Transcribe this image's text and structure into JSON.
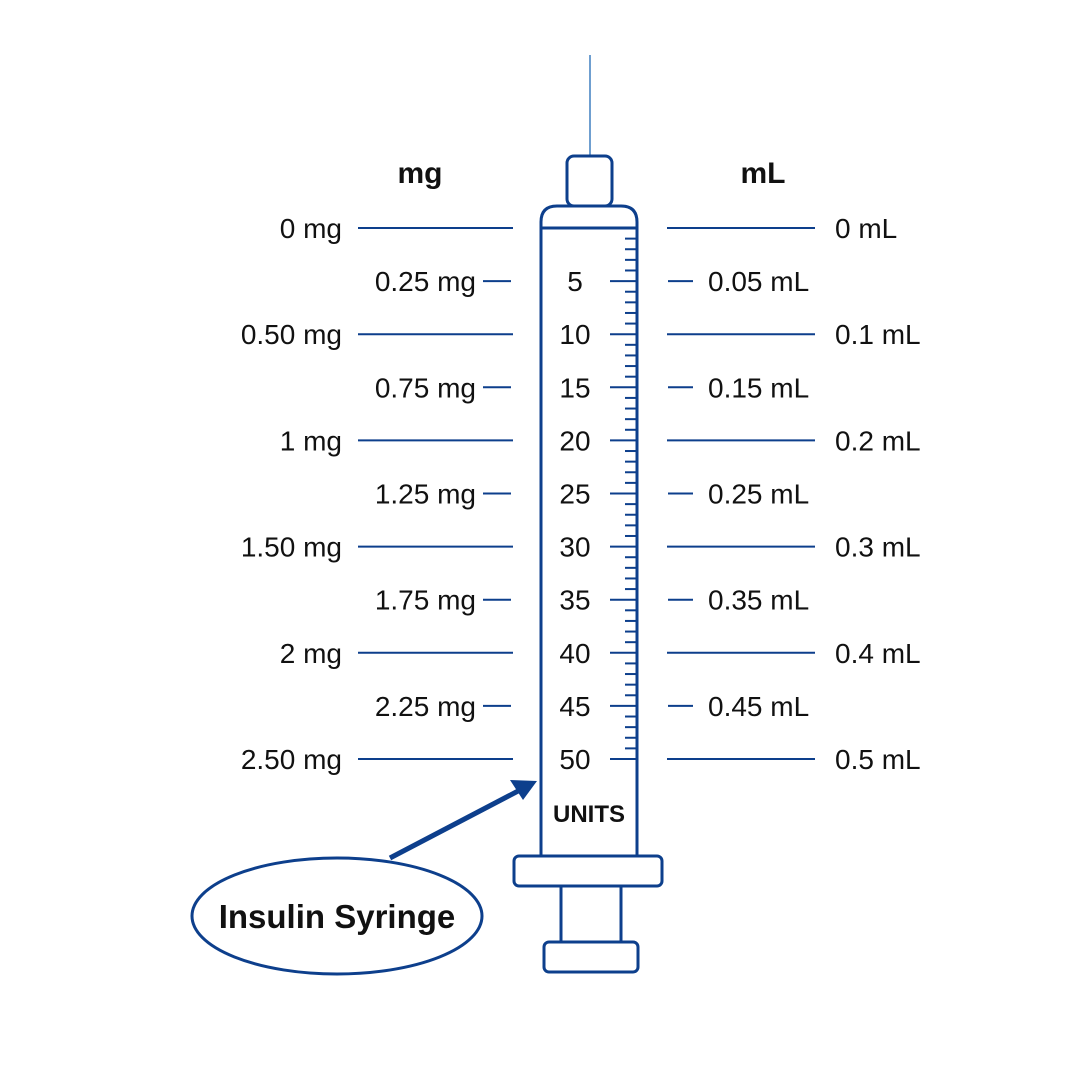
{
  "colors": {
    "stroke": "#0d3f8c",
    "needle": "#6f9fd0",
    "text": "#111111"
  },
  "headers": {
    "mg": "mg",
    "ml": "mL"
  },
  "rows": [
    {
      "mg": "0 mg",
      "units": "",
      "ml": "0 mL",
      "major": true
    },
    {
      "mg": "0.25 mg",
      "units": "5",
      "ml": "0.05 mL",
      "major": false
    },
    {
      "mg": "0.50 mg",
      "units": "10",
      "ml": "0.1 mL",
      "major": true
    },
    {
      "mg": "0.75 mg",
      "units": "15",
      "ml": "0.15 mL",
      "major": false
    },
    {
      "mg": "1 mg",
      "units": "20",
      "ml": "0.2 mL",
      "major": true
    },
    {
      "mg": "1.25 mg",
      "units": "25",
      "ml": "0.25 mL",
      "major": false
    },
    {
      "mg": "1.50 mg",
      "units": "30",
      "ml": "0.3 mL",
      "major": true
    },
    {
      "mg": "1.75 mg",
      "units": "35",
      "ml": "0.35 mL",
      "major": false
    },
    {
      "mg": "2 mg",
      "units": "40",
      "ml": "0.4 mL",
      "major": true
    },
    {
      "mg": "2.25 mg",
      "units": "45",
      "ml": "0.45 mL",
      "major": false
    },
    {
      "mg": "2.50 mg",
      "units": "50",
      "ml": "0.5 mL",
      "major": true
    }
  ],
  "barrel_unit_label": "UNITS",
  "callout": "Insulin Syringe"
}
